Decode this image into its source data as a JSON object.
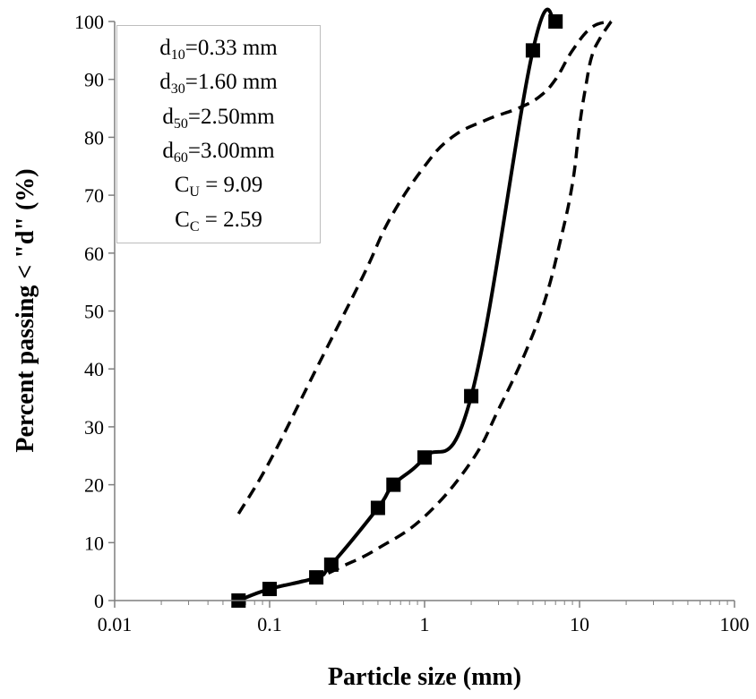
{
  "chart_data": {
    "type": "line",
    "title": "",
    "xlabel": "Particle size (mm)",
    "ylabel": "Percent passing < \"d\" (%)",
    "x_scale": "log",
    "xlim": [
      0.01,
      100
    ],
    "ylim": [
      0,
      100
    ],
    "x_ticks": [
      "0.01",
      "0.1",
      "1",
      "10",
      "100"
    ],
    "y_ticks": [
      "0",
      "10",
      "20",
      "30",
      "40",
      "50",
      "60",
      "70",
      "80",
      "90",
      "100"
    ],
    "grid": false,
    "series": [
      {
        "style": "solid-with-square-markers",
        "color": "#000000",
        "x": [
          0.063,
          0.1,
          0.2,
          0.25,
          0.5,
          0.63,
          1.0,
          2.0,
          5.0,
          7.0
        ],
        "y": [
          0,
          2,
          4,
          6.2,
          16,
          20,
          24.7,
          35.3,
          95,
          100
        ]
      },
      {
        "style": "dashed",
        "color": "#000000",
        "x": [
          0.063,
          0.1,
          0.2,
          0.4,
          0.6,
          1.0,
          1.5,
          2.5,
          4.0,
          5.5,
          7.0,
          9.0,
          12.0,
          16.0
        ],
        "y": [
          15,
          24,
          40,
          56,
          66,
          75,
          80,
          83,
          85,
          87,
          90,
          95,
          99,
          100
        ]
      },
      {
        "style": "dashed",
        "color": "#000000",
        "x": [
          0.063,
          0.1,
          0.2,
          0.3,
          0.5,
          1.0,
          2.0,
          3.0,
          4.5,
          6.0,
          7.5,
          9.0,
          10.0,
          11.0,
          12.0,
          13.5,
          16.0
        ],
        "y": [
          0,
          2,
          4,
          6,
          9,
          14.5,
          24,
          33,
          43,
          52,
          62,
          72,
          82,
          89,
          94,
          97,
          100
        ]
      }
    ],
    "legend_box": {
      "placement": "top-left inset",
      "lines": [
        {
          "sym": "d",
          "sub": "10",
          "text": "=0.33 mm"
        },
        {
          "sym": "d",
          "sub": "30",
          "text": "=1.60 mm"
        },
        {
          "sym": "d",
          "sub": "50",
          "text": "=2.50mm"
        },
        {
          "sym": "d",
          "sub": "60",
          "text": "=3.00mm"
        },
        {
          "sym": "C",
          "sub": "U",
          "text": " = 9.09"
        },
        {
          "sym": "C",
          "sub": "C",
          "text": " = 2.59"
        }
      ]
    }
  }
}
